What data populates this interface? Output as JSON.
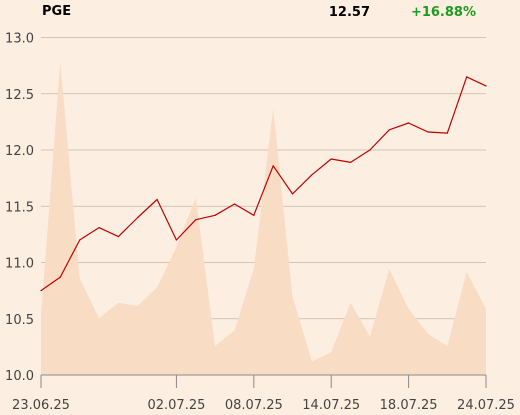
{
  "header": {
    "ticker": "PGE",
    "price": "12.57",
    "change": "+16.88%"
  },
  "colors": {
    "background": "#fcefe2",
    "price_line": "#c00000",
    "volume_fill": "#f8dcc4",
    "change_positive": "#1e9a1e"
  },
  "chart_data": {
    "type": "line",
    "x": [
      "23.06.25",
      "24.06.25",
      "25.06.25",
      "26.06.25",
      "27.06.25",
      "30.06.25",
      "01.07.25",
      "02.07.25",
      "03.07.25",
      "04.07.25",
      "07.07.25",
      "08.07.25",
      "09.07.25",
      "10.07.25",
      "11.07.25",
      "14.07.25",
      "15.07.25",
      "16.07.25",
      "17.07.25",
      "18.07.25",
      "21.07.25",
      "22.07.25",
      "23.07.25",
      "24.07.25"
    ],
    "x_tick_labels": [
      "23.06.25",
      "02.07.25",
      "08.07.25",
      "14.07.25",
      "18.07.25",
      "24.07.25"
    ],
    "series": [
      {
        "values": [
          10.75,
          10.87,
          11.2,
          11.31,
          11.23,
          11.4,
          11.56,
          11.2,
          11.38,
          11.42,
          11.52,
          11.42,
          11.86,
          11.61,
          11.78,
          11.92,
          11.89,
          12.0,
          12.18,
          12.24,
          12.16,
          12.15,
          12.65,
          12.57
        ]
      }
    ],
    "volume_profile": [
      0.1,
      0.92,
      0.22,
      0.09,
      0.14,
      0.13,
      0.19,
      0.32,
      0.48,
      0.0,
      0.05,
      0.25,
      0.77,
      0.16,
      -0.05,
      -0.02,
      0.14,
      0.03,
      0.25,
      0.12,
      0.04,
      0.0,
      0.24,
      0.12
    ],
    "ylim": [
      10.0,
      13.0
    ],
    "yticks": [
      "10.0",
      "10.5",
      "11.0",
      "11.5",
      "12.0",
      "12.5",
      "13.0"
    ],
    "grid": true
  }
}
